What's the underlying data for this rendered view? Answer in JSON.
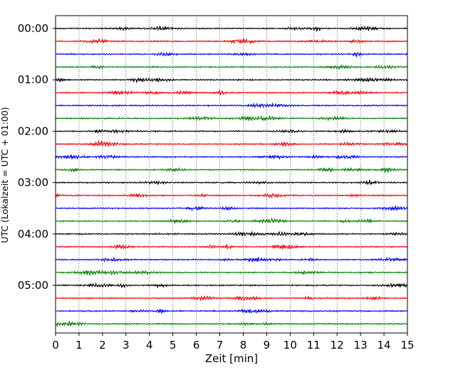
{
  "chart_data": {
    "type": "line",
    "title": "",
    "xlabel": "Zeit  [min]",
    "ylabel": "UTC (Lokalzeit = UTC + 01:00)",
    "xlim": [
      0,
      15
    ],
    "x_ticks": [
      "0",
      "1",
      "2",
      "3",
      "4",
      "5",
      "6",
      "7",
      "8",
      "9",
      "10",
      "11",
      "12",
      "13",
      "14",
      "15"
    ],
    "y_ticks": [
      "00:00",
      "01:00",
      "02:00",
      "03:00",
      "04:00",
      "05:00"
    ],
    "grid": "vertical dotted lines at each minute",
    "trace_interval_min": 15,
    "trace_count": 24,
    "trace_colors": [
      "#000000",
      "#ff0000",
      "#0000ff",
      "#008000"
    ],
    "hours_shown": [
      "00:00",
      "01:00",
      "02:00",
      "03:00",
      "04:00",
      "05:00"
    ]
  }
}
